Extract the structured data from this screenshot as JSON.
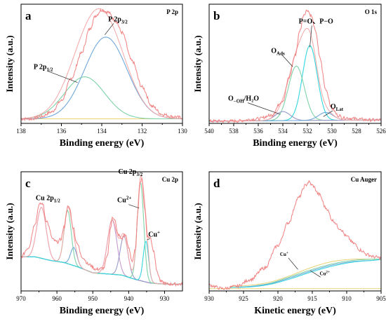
{
  "chart_data": [
    {
      "id": "a",
      "type": "line",
      "panel_letter": "a",
      "corner_label": "P 2p",
      "xlabel": "Binding energy (eV)",
      "ylabel": "Intensity (a.u.)",
      "xlim": [
        138,
        130
      ],
      "ylim": [
        0,
        1.05
      ],
      "xticks": [
        138,
        136,
        134,
        132,
        130
      ],
      "raw_color": "#f08080",
      "raw": [
        [
          138,
          0.04
        ],
        [
          137.5,
          0.04
        ],
        [
          137,
          0.06
        ],
        [
          136.5,
          0.1
        ],
        [
          136,
          0.2
        ],
        [
          135.5,
          0.4
        ],
        [
          135,
          0.62
        ],
        [
          134.6,
          0.83
        ],
        [
          134.3,
          0.95
        ],
        [
          134,
          1.0
        ],
        [
          133.7,
          0.98
        ],
        [
          133.3,
          0.9
        ],
        [
          133,
          0.8
        ],
        [
          132.5,
          0.55
        ],
        [
          132,
          0.32
        ],
        [
          131.5,
          0.15
        ],
        [
          131,
          0.08
        ],
        [
          130.5,
          0.06
        ],
        [
          130,
          0.05
        ]
      ],
      "background": {
        "color": "#e8d27a",
        "points": [
          [
            138,
            0.04
          ],
          [
            130,
            0.04
          ]
        ]
      },
      "components": [
        {
          "color": "#6fa8dc",
          "center": 133.8,
          "amp": 0.72,
          "sigma": 1.05
        },
        {
          "color": "#7fd3a8",
          "center": 134.85,
          "amp": 0.37,
          "sigma": 1.0
        }
      ],
      "fit": {
        "color": "#f4a6a6"
      },
      "annotations": [
        {
          "text": "P 2p",
          "sub": "3/2",
          "x": 133.2,
          "y": 0.9,
          "arrow_to": [
            133.85,
            0.78
          ]
        },
        {
          "text": "P 2p",
          "sub": "1/2",
          "x": 136.9,
          "y": 0.48,
          "arrow_to": [
            135.2,
            0.36
          ]
        }
      ]
    },
    {
      "id": "b",
      "type": "line",
      "panel_letter": "b",
      "corner_label": "O 1s",
      "xlabel": "Binding energy (eV)",
      "ylabel": "Intensity (a.u.)",
      "xlim": [
        540,
        526
      ],
      "ylim": [
        0,
        1.05
      ],
      "xticks": [
        540,
        538,
        536,
        534,
        532,
        530,
        528,
        526
      ],
      "raw_color": "#f08080",
      "raw": [
        [
          540,
          0.02
        ],
        [
          538,
          0.02
        ],
        [
          536,
          0.04
        ],
        [
          535,
          0.07
        ],
        [
          534,
          0.2
        ],
        [
          533.5,
          0.4
        ],
        [
          533,
          0.6
        ],
        [
          532.6,
          0.82
        ],
        [
          532.3,
          0.96
        ],
        [
          532,
          1.0
        ],
        [
          531.7,
          0.95
        ],
        [
          531.3,
          0.8
        ],
        [
          531,
          0.58
        ],
        [
          530.5,
          0.3
        ],
        [
          530,
          0.13
        ],
        [
          529.5,
          0.07
        ],
        [
          529,
          0.05
        ],
        [
          528,
          0.04
        ],
        [
          527,
          0.03
        ],
        [
          526,
          0.03
        ]
      ],
      "background": {
        "color": "#e8d27a",
        "points": [
          [
            540,
            0.02
          ],
          [
            526,
            0.03
          ]
        ]
      },
      "components": [
        {
          "color": "#33d6e0",
          "center": 531.8,
          "amp": 0.66,
          "sigma": 0.6
        },
        {
          "color": "#7fd3a8",
          "center": 532.9,
          "amp": 0.48,
          "sigma": 0.65
        },
        {
          "color": "#9999cc",
          "center": 534.0,
          "amp": 0.08,
          "sigma": 0.6
        },
        {
          "color": "#6fa8dc",
          "center": 530.5,
          "amp": 0.07,
          "sigma": 0.6
        }
      ],
      "fit": {
        "color": "#f4a6a6"
      },
      "annotations": [
        {
          "text": "P=O、P−O",
          "sub": "",
          "x": 531.3,
          "y": 0.88,
          "arrow_to": [
            531.8,
            0.67
          ]
        },
        {
          "text": "O",
          "sub": "Ads",
          "x": 534.4,
          "y": 0.62,
          "arrow_to": [
            533.2,
            0.5
          ]
        },
        {
          "text": "O",
          "sub": "−OH",
          "tail": "/H₂O",
          "x": 537.2,
          "y": 0.2,
          "arrow_to": [
            534.2,
            0.08
          ]
        },
        {
          "text": "O",
          "sub": "Lat",
          "x": 529.6,
          "y": 0.13,
          "arrow_to": [
            530.7,
            0.06
          ]
        }
      ]
    },
    {
      "id": "c",
      "type": "line",
      "panel_letter": "c",
      "corner_label": "Cu 2p",
      "xlabel": "Binding energy (eV)",
      "ylabel": "Intensity (a.u.)",
      "xlim": [
        970,
        925
      ],
      "ylim": [
        0,
        1.05
      ],
      "xticks": [
        970,
        960,
        950,
        940,
        930
      ],
      "raw_color": "#f08080",
      "raw": [
        [
          970,
          0.3
        ],
        [
          968,
          0.38
        ],
        [
          966,
          0.6
        ],
        [
          965,
          0.76
        ],
        [
          964,
          0.77
        ],
        [
          963,
          0.62
        ],
        [
          961,
          0.45
        ],
        [
          960,
          0.43
        ],
        [
          959,
          0.45
        ],
        [
          958,
          0.56
        ],
        [
          957,
          0.74
        ],
        [
          956.5,
          0.73
        ],
        [
          955.5,
          0.56
        ],
        [
          954.5,
          0.43
        ],
        [
          953,
          0.3
        ],
        [
          951,
          0.23
        ],
        [
          949,
          0.19
        ],
        [
          947,
          0.2
        ],
        [
          946,
          0.3
        ],
        [
          945,
          0.56
        ],
        [
          944.5,
          0.65
        ],
        [
          944,
          0.64
        ],
        [
          943,
          0.5
        ],
        [
          942,
          0.46
        ],
        [
          941,
          0.5
        ],
        [
          940,
          0.38
        ],
        [
          939,
          0.26
        ],
        [
          938,
          0.38
        ],
        [
          937.5,
          0.7
        ],
        [
          936.8,
          0.96
        ],
        [
          936.3,
          0.98
        ],
        [
          935.5,
          0.72
        ],
        [
          934.8,
          0.48
        ],
        [
          934,
          0.47
        ],
        [
          933,
          0.35
        ],
        [
          932,
          0.16
        ],
        [
          931,
          0.08
        ],
        [
          929,
          0.06
        ],
        [
          927,
          0.06
        ],
        [
          925,
          0.06
        ]
      ],
      "background": {
        "color": "#e8d27a",
        "points": [
          [
            970,
            0.3
          ],
          [
            966,
            0.3
          ],
          [
            962,
            0.27
          ],
          [
            958,
            0.25
          ],
          [
            954,
            0.21
          ],
          [
            950,
            0.16
          ],
          [
            946,
            0.15
          ],
          [
            942,
            0.14
          ],
          [
            938,
            0.1
          ],
          [
            934,
            0.07
          ],
          [
            930,
            0.06
          ],
          [
            925,
            0.06
          ]
        ]
      },
      "components": [
        {
          "color": "#d4aedc",
          "center": 964.3,
          "amp": 0.45,
          "sigma": 1.3
        },
        {
          "color": "#7fd3a8",
          "center": 957.0,
          "amp": 0.47,
          "sigma": 1.0
        },
        {
          "color": "#6fa8dc",
          "center": 955.3,
          "amp": 0.16,
          "sigma": 0.9
        },
        {
          "color": "#c79ad0",
          "center": 944.6,
          "amp": 0.48,
          "sigma": 1.3
        },
        {
          "color": "#9999cc",
          "center": 941.3,
          "amp": 0.35,
          "sigma": 1.1
        },
        {
          "color": "#7fd3a8",
          "center": 936.7,
          "amp": 0.87,
          "sigma": 0.9
        },
        {
          "color": "#33d6e0",
          "center": 935.2,
          "amp": 0.36,
          "sigma": 0.75
        }
      ],
      "fit": {
        "color": "#f4a6a6"
      },
      "annotations": [
        {
          "text": "Cu 2p",
          "sub": "3/2",
          "x": 939.5,
          "y": 1.03
        },
        {
          "text": "Cu 2p",
          "sub": "1/2",
          "x": 962.5,
          "y": 0.8
        },
        {
          "text": "Cu",
          "sup": "2+",
          "x": 941.2,
          "y": 0.78,
          "arrow_to": [
            937.1,
            0.73
          ]
        },
        {
          "text": "Cu",
          "sup": "+",
          "x": 932.9,
          "y": 0.48,
          "arrow_to": [
            934.9,
            0.45
          ]
        }
      ]
    },
    {
      "id": "d",
      "type": "line",
      "panel_letter": "d",
      "corner_label": "Cu Auger",
      "xlabel": "Kinetic energy (eV)",
      "ylabel": "Intensity (a.u.)",
      "xlim": [
        930,
        905
      ],
      "ylim": [
        0,
        1.05
      ],
      "xticks": [
        930,
        925,
        920,
        915,
        910,
        905
      ],
      "raw_color": "#f08080",
      "raw": [
        [
          930,
          0.05
        ],
        [
          928,
          0.02
        ],
        [
          926,
          0.04
        ],
        [
          924,
          0.1
        ],
        [
          922,
          0.2
        ],
        [
          920,
          0.4
        ],
        [
          918.5,
          0.6
        ],
        [
          917,
          0.82
        ],
        [
          916,
          0.93
        ],
        [
          915.5,
          0.96
        ],
        [
          915,
          0.93
        ],
        [
          914,
          0.85
        ],
        [
          913,
          0.73
        ],
        [
          912,
          0.62
        ],
        [
          911,
          0.55
        ],
        [
          910,
          0.48
        ],
        [
          909,
          0.42
        ],
        [
          908,
          0.36
        ],
        [
          907,
          0.32
        ],
        [
          906,
          0.3
        ],
        [
          905,
          0.29
        ]
      ],
      "background": {
        "color": "#e8d27a",
        "points": [
          [
            930,
            0.02
          ],
          [
            905,
            0.02
          ]
        ]
      },
      "envelopes": [
        {
          "color": "#e8d27a",
          "points": [
            [
              927,
              0.04
            ],
            [
              924,
              0.05
            ],
            [
              921,
              0.08
            ],
            [
              918,
              0.14
            ],
            [
              915,
              0.21
            ],
            [
              912,
              0.26
            ],
            [
              909,
              0.28
            ],
            [
              906,
              0.28
            ],
            [
              905,
              0.28
            ]
          ]
        },
        {
          "color": "#7fd3a8",
          "points": [
            [
              927,
              0.03
            ],
            [
              924,
              0.04
            ],
            [
              921,
              0.07
            ],
            [
              918,
              0.13
            ],
            [
              915,
              0.19
            ],
            [
              912,
              0.24
            ],
            [
              909,
              0.27
            ],
            [
              906,
              0.28
            ],
            [
              905,
              0.28
            ]
          ]
        },
        {
          "color": "#6fa8dc",
          "points": [
            [
              927,
              0.03
            ],
            [
              924,
              0.04
            ],
            [
              921,
              0.065
            ],
            [
              918,
              0.12
            ],
            [
              915,
              0.18
            ],
            [
              912,
              0.23
            ],
            [
              909,
              0.26
            ],
            [
              906,
              0.27
            ],
            [
              905,
              0.28
            ]
          ]
        },
        {
          "color": "#33d6e0",
          "points": [
            [
              927,
              0.03
            ],
            [
              924,
              0.035
            ],
            [
              921,
              0.06
            ],
            [
              918,
              0.11
            ],
            [
              915,
              0.17
            ],
            [
              912,
              0.22
            ],
            [
              909,
              0.255
            ],
            [
              906,
              0.27
            ],
            [
              905,
              0.28
            ]
          ]
        }
      ],
      "annotations": [
        {
          "text": "Cu",
          "sup": "+",
          "x": 919.1,
          "y": 0.31,
          "arrow_to": [
            917.1,
            0.19
          ],
          "small": true
        },
        {
          "text": "Cu",
          "sup": "2+",
          "x": 913.2,
          "y": 0.14,
          "arrow_to": [
            915.3,
            0.18
          ],
          "small": true
        }
      ]
    }
  ]
}
